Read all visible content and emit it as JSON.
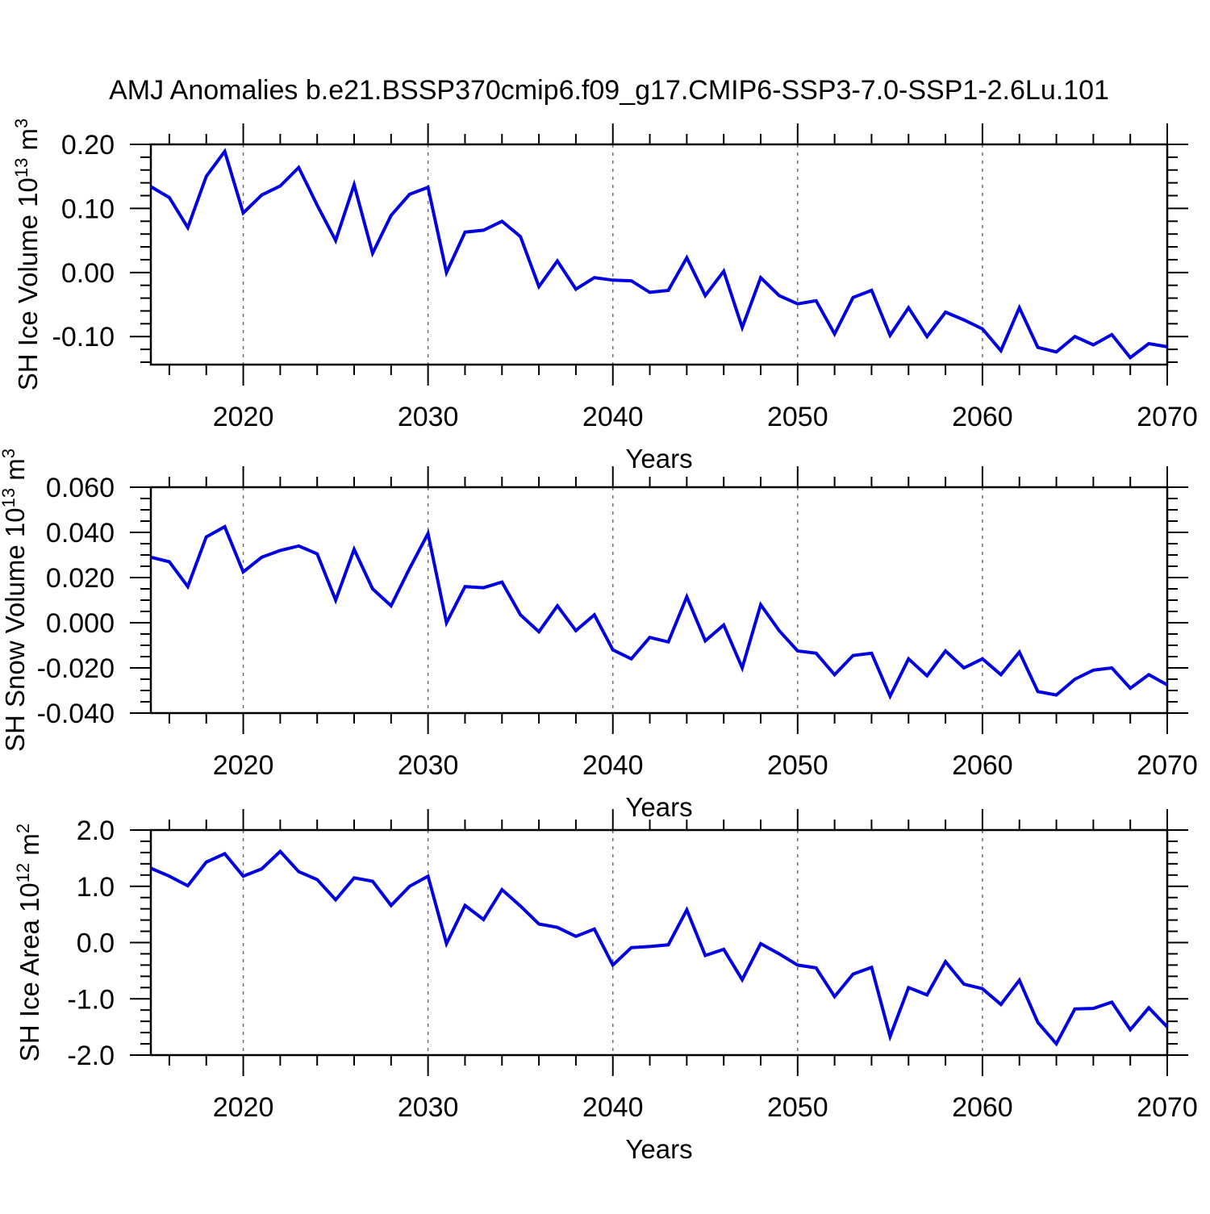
{
  "title": "AMJ Anomalies b.e21.BSSP370cmip6.f09_g17.CMIP6-SSP3-7.0-SSP1-2.6Lu.101",
  "line_color": "#0000E0",
  "grid_color": "#6f6f6f",
  "axis_color": "#000000",
  "x_axis": {
    "label": "Years",
    "start": 2015,
    "end": 2070,
    "major_ticks": [
      2020,
      2030,
      2040,
      2050,
      2060,
      2070
    ],
    "major_tick_labels": [
      "2020",
      "2030",
      "2040",
      "2050",
      "2060",
      "2070"
    ],
    "minor_step": 2,
    "gridlines": [
      2020,
      2030,
      2040,
      2050,
      2060
    ]
  },
  "chart_data": [
    {
      "type": "line",
      "name": "sh-ice-volume",
      "ylabel": {
        "base": "SH Ice Volume 10",
        "sup": "13",
        "unit": " m",
        "unit_sup": "3"
      },
      "ylim": [
        -0.1438,
        0.2
      ],
      "ytick_values": [
        0.2,
        0.1,
        0.0,
        -0.1
      ],
      "ytick_labels": [
        "0.20",
        "0.10",
        "0.00",
        "-0.10"
      ],
      "y_minor_step": 0.02,
      "x_start": 2015,
      "values": [
        0.134,
        0.117,
        0.07,
        0.15,
        0.189,
        0.093,
        0.121,
        0.135,
        0.164,
        0.105,
        0.05,
        0.137,
        0.03,
        0.089,
        0.122,
        0.133,
        0.0,
        0.063,
        0.066,
        0.08,
        0.056,
        -0.022,
        0.018,
        -0.026,
        -0.008,
        -0.012,
        -0.013,
        -0.031,
        -0.028,
        0.023,
        -0.036,
        0.002,
        -0.086,
        -0.008,
        -0.036,
        -0.049,
        -0.044,
        -0.096,
        -0.039,
        -0.028,
        -0.098,
        -0.055,
        -0.1,
        -0.062,
        -0.074,
        -0.088,
        -0.122,
        -0.055,
        -0.117,
        -0.124,
        -0.1,
        -0.113,
        -0.097,
        -0.133,
        -0.111,
        -0.116
      ]
    },
    {
      "type": "line",
      "name": "sh-snow-volume",
      "ylabel": {
        "base": "SH Snow Volume 10",
        "sup": "13",
        "unit": " m",
        "unit_sup": "3"
      },
      "ylim": [
        -0.04,
        0.06
      ],
      "ytick_values": [
        0.06,
        0.04,
        0.02,
        0.0,
        -0.02,
        -0.04
      ],
      "ytick_labels": [
        "0.060",
        "0.040",
        "0.020",
        "0.000",
        "-0.020",
        "-0.040"
      ],
      "y_minor_step": 0.005,
      "x_start": 2015,
      "values": [
        0.029,
        0.027,
        0.016,
        0.038,
        0.0425,
        0.0225,
        0.029,
        0.032,
        0.034,
        0.0305,
        0.01,
        0.0325,
        0.015,
        0.0075,
        0.024,
        0.0395,
        0.0,
        0.016,
        0.0155,
        0.018,
        0.0035,
        -0.004,
        0.0075,
        -0.0035,
        0.0035,
        -0.012,
        -0.016,
        -0.0065,
        -0.0085,
        0.0115,
        -0.008,
        -0.001,
        -0.02,
        0.008,
        -0.0035,
        -0.0125,
        -0.0135,
        -0.023,
        -0.0145,
        -0.0135,
        -0.0325,
        -0.016,
        -0.0235,
        -0.0125,
        -0.02,
        -0.016,
        -0.023,
        -0.013,
        -0.0305,
        -0.032,
        -0.025,
        -0.021,
        -0.02,
        -0.029,
        -0.023,
        -0.0275
      ]
    },
    {
      "type": "line",
      "name": "sh-ice-area",
      "ylabel": {
        "base": "SH Ice Area 10",
        "sup": "12",
        "unit": " m",
        "unit_sup": "2"
      },
      "ylim": [
        -2.0,
        2.0
      ],
      "ytick_values": [
        2.0,
        1.0,
        0.0,
        -1.0,
        -2.0
      ],
      "ytick_labels": [
        "2.0",
        "1.0",
        "0.0",
        "-1.0",
        "-2.0"
      ],
      "y_minor_step": 0.2,
      "x_start": 2015,
      "values": [
        1.32,
        1.18,
        1.01,
        1.43,
        1.58,
        1.18,
        1.31,
        1.62,
        1.26,
        1.12,
        0.76,
        1.15,
        1.09,
        0.66,
        1.0,
        1.18,
        -0.02,
        0.66,
        0.41,
        0.94,
        0.65,
        0.33,
        0.27,
        0.11,
        0.24,
        -0.4,
        -0.09,
        -0.07,
        -0.04,
        0.58,
        -0.23,
        -0.12,
        -0.66,
        -0.02,
        -0.2,
        -0.4,
        -0.45,
        -0.96,
        -0.56,
        -0.44,
        -1.67,
        -0.8,
        -0.93,
        -0.34,
        -0.74,
        -0.82,
        -1.1,
        -0.67,
        -1.42,
        -1.8,
        -1.18,
        -1.17,
        -1.06,
        -1.55,
        -1.16,
        -1.5
      ]
    }
  ]
}
